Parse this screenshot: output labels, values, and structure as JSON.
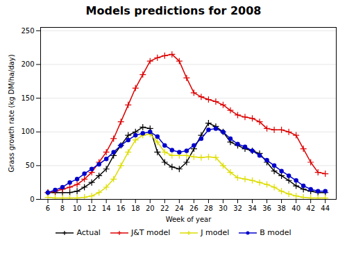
{
  "chart_data": {
    "type": "line",
    "title": "Models predictions for 2008",
    "xlabel": "Week of year",
    "ylabel": "Grass growth rate (kg DM/ha/day)",
    "xlim": [
      5,
      45.5
    ],
    "ylim": [
      0,
      255
    ],
    "xticks": [
      6,
      8,
      10,
      12,
      14,
      16,
      18,
      20,
      22,
      24,
      26,
      28,
      30,
      32,
      34,
      36,
      38,
      40,
      42,
      44
    ],
    "yticks": [
      0,
      50,
      100,
      150,
      200,
      250
    ],
    "grid": true,
    "legend": "bottom",
    "x": [
      6,
      7,
      8,
      9,
      10,
      11,
      12,
      13,
      14,
      15,
      16,
      17,
      18,
      19,
      20,
      21,
      22,
      23,
      24,
      25,
      26,
      27,
      28,
      29,
      30,
      31,
      32,
      33,
      34,
      35,
      36,
      37,
      38,
      39,
      40,
      41,
      42,
      43,
      44
    ],
    "series": [
      {
        "name": "Actual",
        "color": "#000000",
        "marker": "plus",
        "values": [
          10,
          10,
          10,
          10,
          12,
          18,
          25,
          35,
          45,
          65,
          80,
          95,
          100,
          107,
          105,
          70,
          55,
          48,
          45,
          55,
          75,
          95,
          113,
          108,
          100,
          85,
          80,
          75,
          72,
          68,
          55,
          42,
          35,
          28,
          20,
          15,
          12,
          10,
          10
        ]
      },
      {
        "name": "J&T model",
        "color": "#dd0000",
        "marker": "plus",
        "values": [
          10,
          12,
          15,
          18,
          22,
          30,
          40,
          55,
          70,
          90,
          115,
          140,
          165,
          185,
          205,
          210,
          213,
          215,
          205,
          180,
          158,
          152,
          148,
          145,
          140,
          132,
          125,
          122,
          120,
          115,
          105,
          103,
          103,
          100,
          95,
          75,
          55,
          40,
          38
        ]
      },
      {
        "name": "J model",
        "color": "#dddd00",
        "marker": "plus",
        "values": [
          3,
          2,
          2,
          2,
          2,
          3,
          5,
          10,
          18,
          30,
          50,
          70,
          88,
          95,
          97,
          85,
          70,
          65,
          65,
          65,
          63,
          62,
          63,
          62,
          50,
          40,
          32,
          30,
          28,
          25,
          22,
          18,
          12,
          8,
          5,
          3,
          2,
          2,
          2
        ]
      },
      {
        "name": "B model",
        "color": "#0000cc",
        "marker": "circle",
        "values": [
          10,
          14,
          18,
          25,
          30,
          38,
          45,
          52,
          60,
          70,
          80,
          88,
          95,
          98,
          100,
          93,
          80,
          73,
          70,
          72,
          80,
          90,
          103,
          105,
          100,
          90,
          82,
          78,
          72,
          65,
          58,
          50,
          42,
          35,
          28,
          20,
          15,
          12,
          12
        ]
      }
    ]
  }
}
